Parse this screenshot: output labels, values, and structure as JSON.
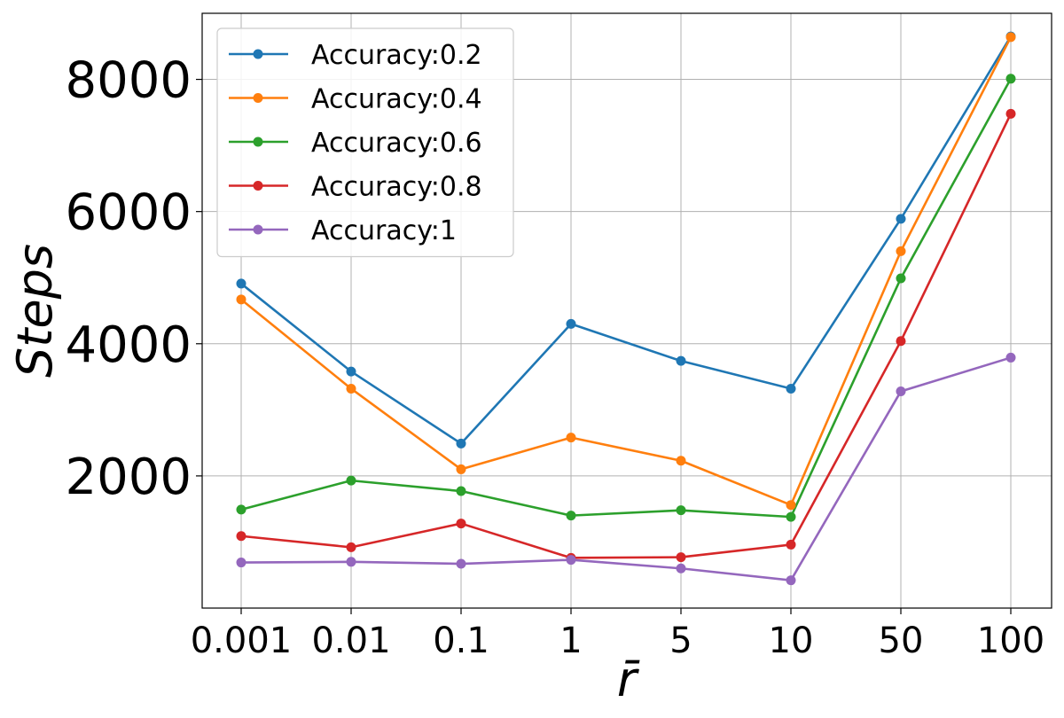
{
  "chart_data": {
    "type": "line",
    "xlabel": "r̄",
    "ylabel": "Steps",
    "categories": [
      "0.001",
      "0.01",
      "0.1",
      "1",
      "5",
      "10",
      "50",
      "100"
    ],
    "yticks": [
      2000,
      4000,
      6000,
      8000
    ],
    "ylim": [
      0,
      9000
    ],
    "grid": true,
    "legend_position": "upper-left",
    "series": [
      {
        "name": "Accuracy:0.2",
        "color": "#1f77b4",
        "values": [
          4910,
          3580,
          2490,
          4300,
          3740,
          3320,
          5890,
          8650
        ]
      },
      {
        "name": "Accuracy:0.4",
        "color": "#ff7f0e",
        "values": [
          4670,
          3320,
          2100,
          2580,
          2230,
          1560,
          5400,
          8640
        ]
      },
      {
        "name": "Accuracy:0.6",
        "color": "#2ca02c",
        "values": [
          1490,
          1930,
          1770,
          1400,
          1480,
          1380,
          4990,
          8010
        ]
      },
      {
        "name": "Accuracy:0.8",
        "color": "#d62728",
        "values": [
          1090,
          920,
          1280,
          760,
          770,
          960,
          4040,
          7480
        ]
      },
      {
        "name": "Accuracy:1",
        "color": "#9467bd",
        "values": [
          690,
          700,
          670,
          730,
          600,
          420,
          3280,
          3790
        ]
      }
    ]
  }
}
